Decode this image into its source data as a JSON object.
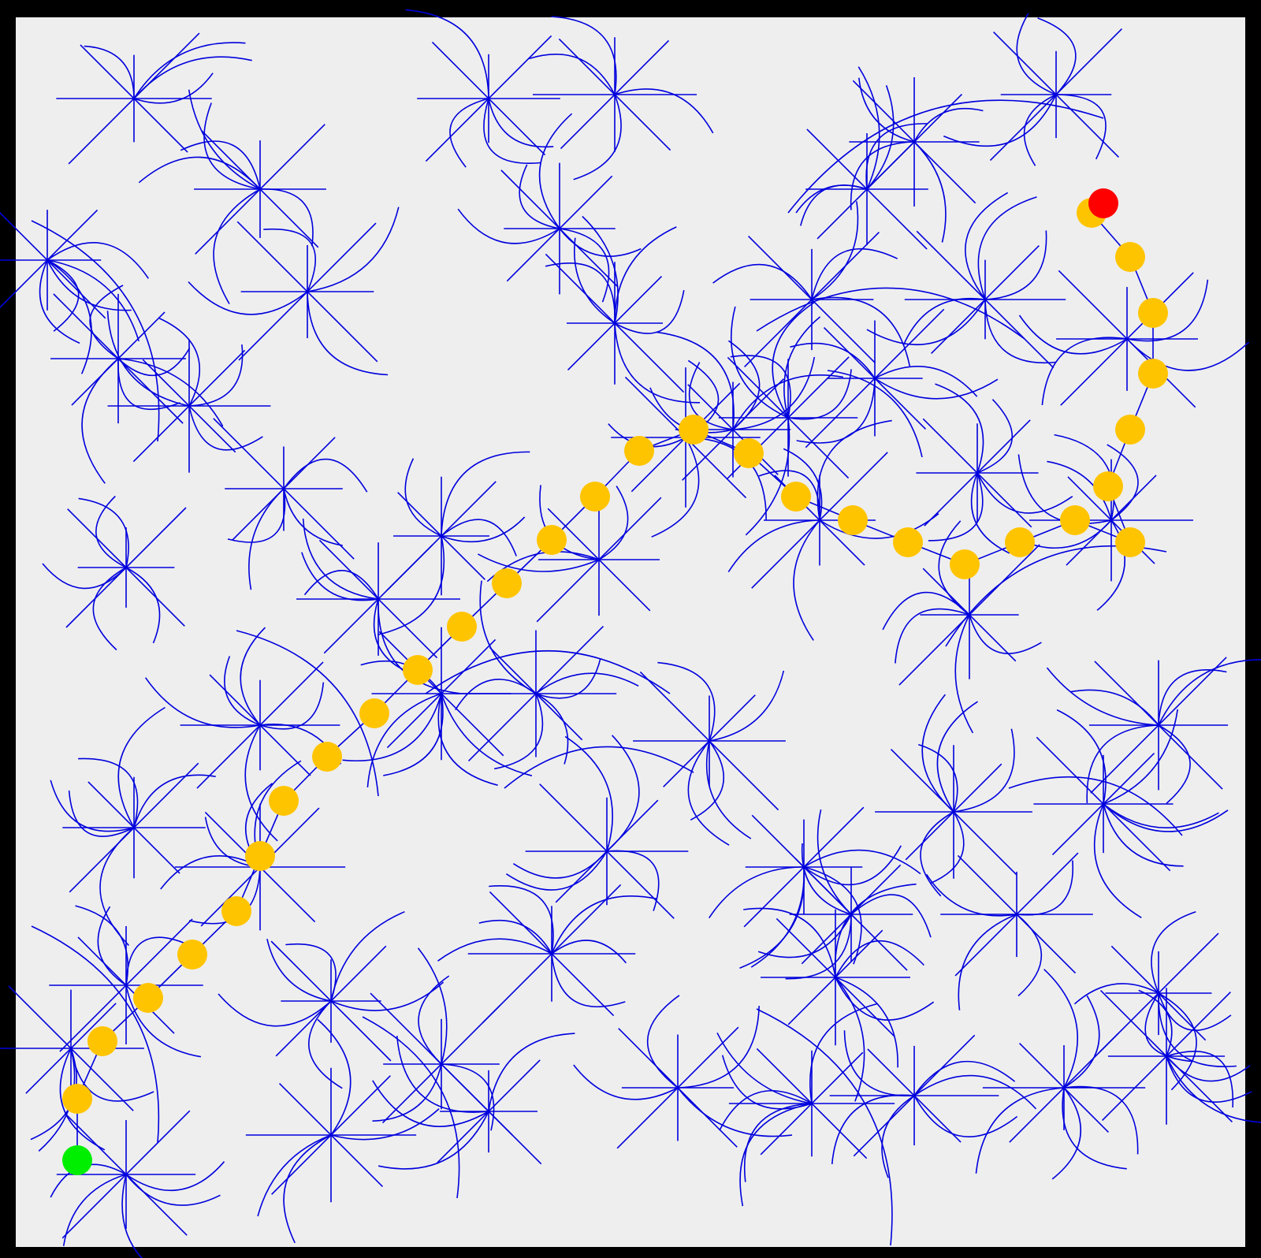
{
  "window": {
    "title": ""
  },
  "colors": {
    "frame": "#000000",
    "background": "#eeeeee",
    "tree_edges": "#0000dd",
    "path_nodes": "#ffc400",
    "start": "#00ee00",
    "goal": "#ff0000"
  },
  "legend": [],
  "diagram": {
    "type": "rrt-path-planning",
    "tree": {
      "description_visible": false
    },
    "start": {
      "label": "",
      "color_name": "green"
    },
    "goal": {
      "label": "",
      "color_name": "red"
    },
    "path": {
      "node_count": 30
    }
  }
}
